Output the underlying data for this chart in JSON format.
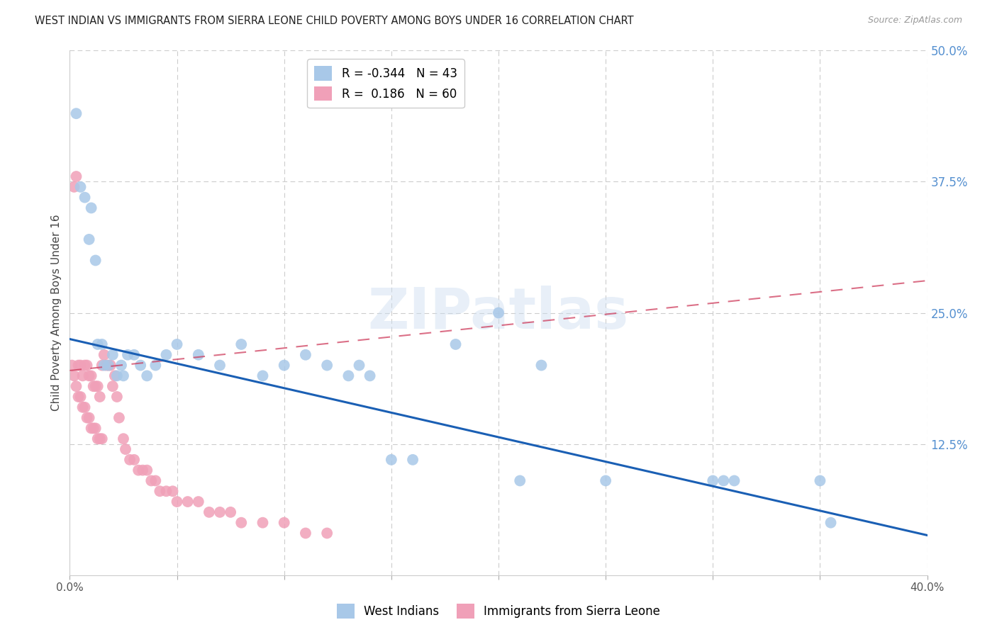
{
  "title": "WEST INDIAN VS IMMIGRANTS FROM SIERRA LEONE CHILD POVERTY AMONG BOYS UNDER 16 CORRELATION CHART",
  "source": "Source: ZipAtlas.com",
  "ylabel": "Child Poverty Among Boys Under 16",
  "xlim": [
    0.0,
    0.4
  ],
  "ylim": [
    0.0,
    0.5
  ],
  "legend_blue_R": "-0.344",
  "legend_blue_N": "43",
  "legend_pink_R": "0.186",
  "legend_pink_N": "60",
  "blue_color": "#a8c8e8",
  "blue_line_color": "#1a5fb4",
  "pink_color": "#f0a0b8",
  "pink_line_color": "#cc3355",
  "title_color": "#222222",
  "source_color": "#999999",
  "right_label_color": "#5590d0",
  "background_color": "#ffffff",
  "grid_color": "#cccccc",
  "blue_line_x0": 0.0,
  "blue_line_y0": 0.225,
  "blue_line_x1": 0.4,
  "blue_line_y1": 0.038,
  "pink_line_x0": 0.0,
  "pink_line_y0": 0.195,
  "pink_line_x1": 0.14,
  "pink_line_y1": 0.225,
  "west_indian_x": [
    0.003,
    0.005,
    0.007,
    0.009,
    0.01,
    0.012,
    0.013,
    0.015,
    0.016,
    0.018,
    0.02,
    0.022,
    0.024,
    0.025,
    0.027,
    0.03,
    0.033,
    0.036,
    0.04,
    0.045,
    0.05,
    0.06,
    0.07,
    0.08,
    0.09,
    0.1,
    0.11,
    0.12,
    0.13,
    0.135,
    0.14,
    0.15,
    0.16,
    0.18,
    0.2,
    0.21,
    0.22,
    0.25,
    0.3,
    0.305,
    0.31,
    0.35,
    0.355
  ],
  "west_indian_y": [
    0.44,
    0.37,
    0.36,
    0.32,
    0.35,
    0.3,
    0.22,
    0.22,
    0.2,
    0.2,
    0.21,
    0.19,
    0.2,
    0.19,
    0.21,
    0.21,
    0.2,
    0.19,
    0.2,
    0.21,
    0.22,
    0.21,
    0.2,
    0.22,
    0.19,
    0.2,
    0.21,
    0.2,
    0.19,
    0.2,
    0.19,
    0.11,
    0.11,
    0.22,
    0.25,
    0.09,
    0.2,
    0.09,
    0.09,
    0.09,
    0.09,
    0.09,
    0.05
  ],
  "sierra_leone_x": [
    0.001,
    0.002,
    0.002,
    0.003,
    0.003,
    0.004,
    0.004,
    0.005,
    0.005,
    0.006,
    0.006,
    0.007,
    0.007,
    0.008,
    0.008,
    0.009,
    0.009,
    0.01,
    0.01,
    0.011,
    0.011,
    0.012,
    0.012,
    0.013,
    0.013,
    0.014,
    0.014,
    0.015,
    0.015,
    0.016,
    0.017,
    0.018,
    0.019,
    0.02,
    0.021,
    0.022,
    0.023,
    0.025,
    0.026,
    0.028,
    0.03,
    0.032,
    0.034,
    0.036,
    0.038,
    0.04,
    0.042,
    0.045,
    0.048,
    0.05,
    0.055,
    0.06,
    0.065,
    0.07,
    0.075,
    0.08,
    0.09,
    0.1,
    0.11,
    0.12
  ],
  "sierra_leone_y": [
    0.2,
    0.37,
    0.19,
    0.38,
    0.18,
    0.2,
    0.17,
    0.2,
    0.17,
    0.19,
    0.16,
    0.2,
    0.16,
    0.2,
    0.15,
    0.19,
    0.15,
    0.19,
    0.14,
    0.18,
    0.14,
    0.18,
    0.14,
    0.18,
    0.13,
    0.17,
    0.13,
    0.2,
    0.13,
    0.21,
    0.2,
    0.2,
    0.2,
    0.18,
    0.19,
    0.17,
    0.15,
    0.13,
    0.12,
    0.11,
    0.11,
    0.1,
    0.1,
    0.1,
    0.09,
    0.09,
    0.08,
    0.08,
    0.08,
    0.07,
    0.07,
    0.07,
    0.06,
    0.06,
    0.06,
    0.05,
    0.05,
    0.05,
    0.04,
    0.04
  ]
}
